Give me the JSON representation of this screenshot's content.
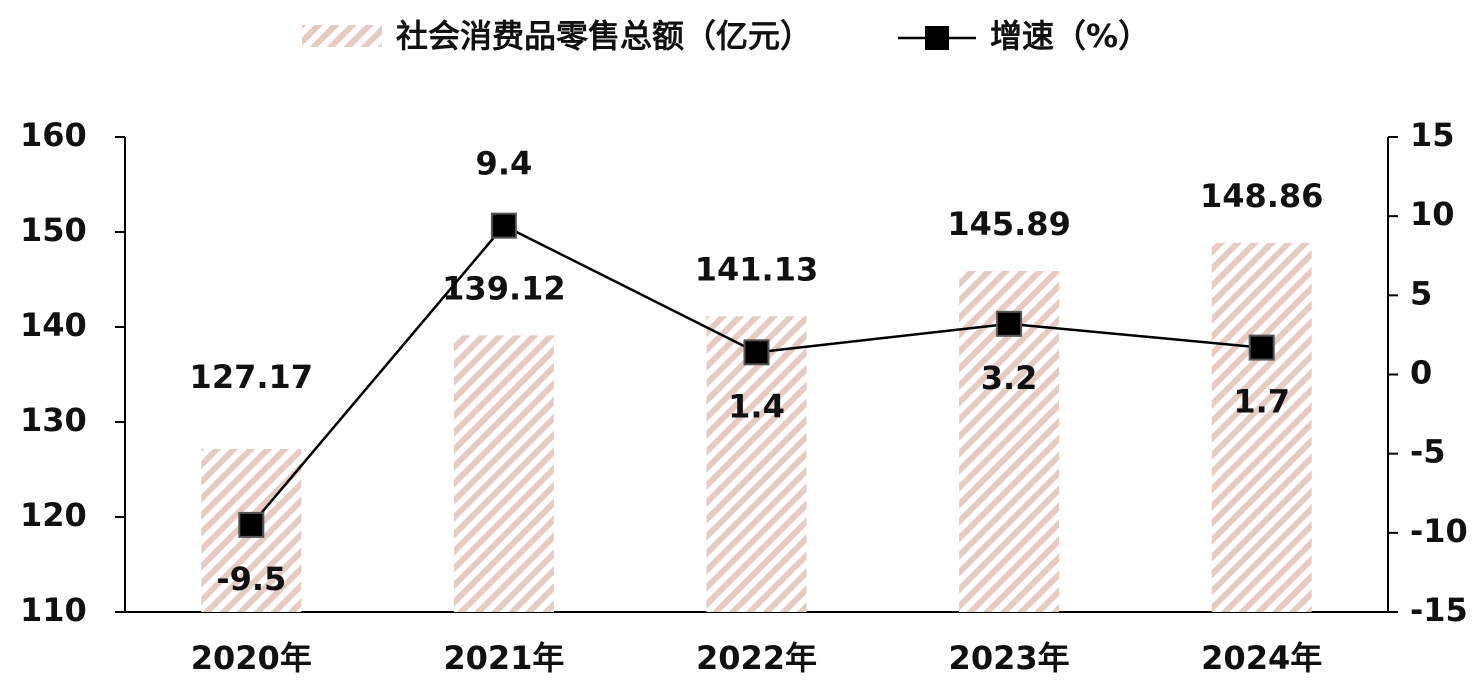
{
  "chart_data": {
    "type": "bar-line",
    "categories": [
      "2020年",
      "2021年",
      "2022年",
      "2023年",
      "2024年"
    ],
    "series": [
      {
        "name": "社会消费品零售总额（亿元）",
        "type": "bar",
        "color": "#e6cbc3",
        "values": [
          127.17,
          139.12,
          141.13,
          145.89,
          148.86
        ]
      },
      {
        "name": "增速（%）",
        "type": "line",
        "axis": "y2",
        "color": "#000000",
        "values": [
          -9.5,
          9.4,
          1.4,
          3.2,
          1.7
        ]
      }
    ],
    "ylim": [
      110,
      160
    ],
    "yticks": [
      110,
      120,
      130,
      140,
      150,
      160
    ],
    "y2lim": [
      -15,
      15
    ],
    "y2ticks": [
      -15,
      -10,
      -5,
      0,
      5,
      10,
      15
    ],
    "legend": "top"
  }
}
